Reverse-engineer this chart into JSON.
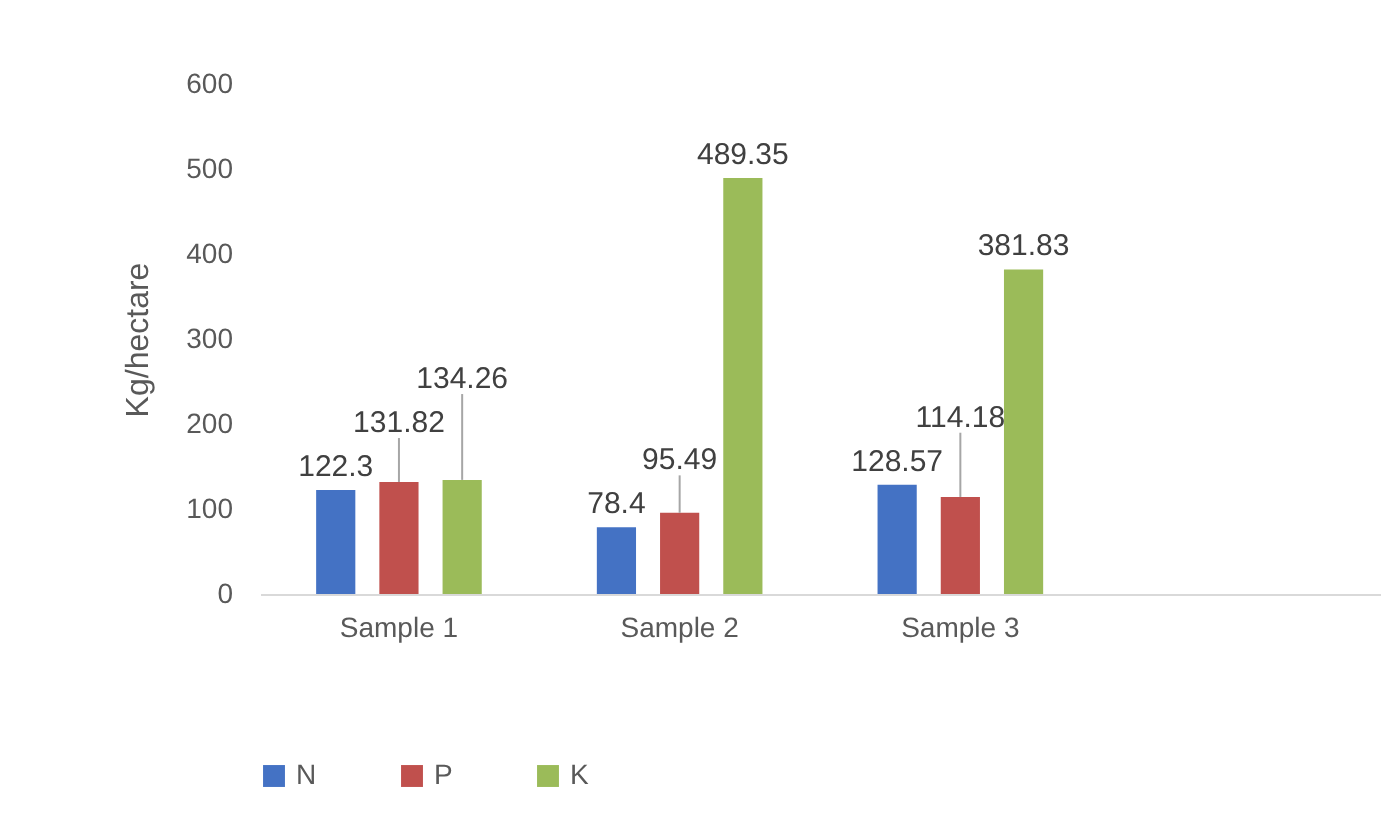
{
  "chart_data": {
    "type": "bar",
    "categories": [
      "Sample 1",
      "Sample 2",
      "Sample 3",
      null
    ],
    "series": [
      {
        "name": "N",
        "color": "#4472c4",
        "values": [
          122.3,
          78.4,
          128.57,
          null
        ]
      },
      {
        "name": "P",
        "color": "#c0504d",
        "values": [
          131.82,
          95.49,
          114.18,
          null
        ]
      },
      {
        "name": "K",
        "color": "#9bbb59",
        "values": [
          134.26,
          489.35,
          381.83,
          null
        ]
      }
    ],
    "ylabel": "Kg/hectare",
    "ylim": [
      0,
      600
    ],
    "yticks": [
      0,
      100,
      200,
      300,
      400,
      500,
      600
    ],
    "data_labels": true,
    "grid": false,
    "legend": "bottom"
  }
}
